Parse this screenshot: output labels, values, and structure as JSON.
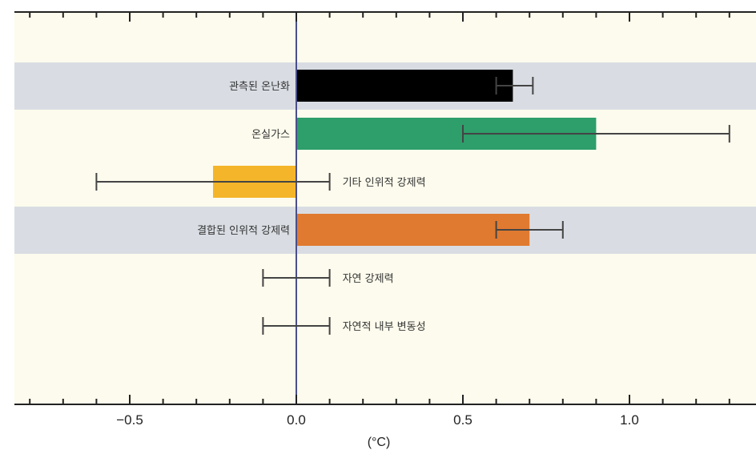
{
  "chart_data": {
    "type": "bar",
    "orientation": "horizontal",
    "xlabel": "(°C)",
    "xlim": [
      -0.85,
      1.38
    ],
    "xticks": [
      -0.5,
      0.0,
      0.5,
      1.0
    ],
    "xtick_labels": [
      "−0.5",
      "0.0",
      "0.5",
      "1.0"
    ],
    "grid": false,
    "categories": [
      {
        "label": "관측된 온난화",
        "value": 0.65,
        "err_low": 0.6,
        "err_high": 0.71,
        "color": "#000000",
        "highlight": true
      },
      {
        "label": "온실가스",
        "value": 0.9,
        "err_low": 0.5,
        "err_high": 1.3,
        "color": "#2e9e6a",
        "highlight": false
      },
      {
        "label": "기타 인위적 강제력",
        "value": -0.25,
        "err_low": -0.6,
        "err_high": 0.1,
        "color": "#f4b52a",
        "highlight": false
      },
      {
        "label": "결합된 인위적 강제력",
        "value": 0.7,
        "err_low": 0.6,
        "err_high": 0.8,
        "color": "#e07a30",
        "highlight": true
      },
      {
        "label": "자연 강제력",
        "value": 0.0,
        "err_low": -0.1,
        "err_high": 0.1,
        "color": "#3a3f6e",
        "highlight": false
      },
      {
        "label": "자연적 내부 변동성",
        "value": 0.0,
        "err_low": -0.1,
        "err_high": 0.1,
        "color": "#3a3f6e",
        "highlight": false
      }
    ]
  },
  "colors": {
    "plot_background": "#fdfbed",
    "highlight_band": "#d9dde3",
    "zero_line": "#4a4f8a",
    "error_bar": "#444444"
  }
}
